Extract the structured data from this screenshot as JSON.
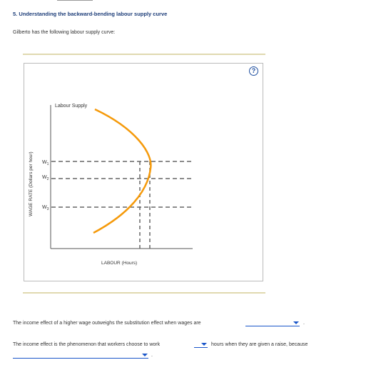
{
  "question": {
    "title": "5. Understanding the backward-bending labour supply curve",
    "intro": "Gilberto has the following labour supply curve:"
  },
  "help_symbol": "?",
  "chart_data": {
    "type": "line",
    "legend": "Labour Supply",
    "xlabel": "LABOUR (Hours)",
    "ylabel": "WAGE RATE (Dollars per hour)",
    "wage_levels": [
      {
        "label": "W",
        "sub": "1"
      },
      {
        "label": "W",
        "sub": "2"
      },
      {
        "label": "W",
        "sub": "3"
      }
    ],
    "line_color": "#f59a0b",
    "dash_color": "#666666"
  },
  "sentence1": {
    "text": "The income effect of a higher wage outweighs the substitution effect when wages are",
    "dropdown_value": "",
    "end": "."
  },
  "sentence2": {
    "text_before": "The income effect is the phenomenon that workers choose to work",
    "dropdown1_value": "",
    "text_after": "hours when they are given a raise, because",
    "dropdown2_value": "",
    "end": "."
  }
}
